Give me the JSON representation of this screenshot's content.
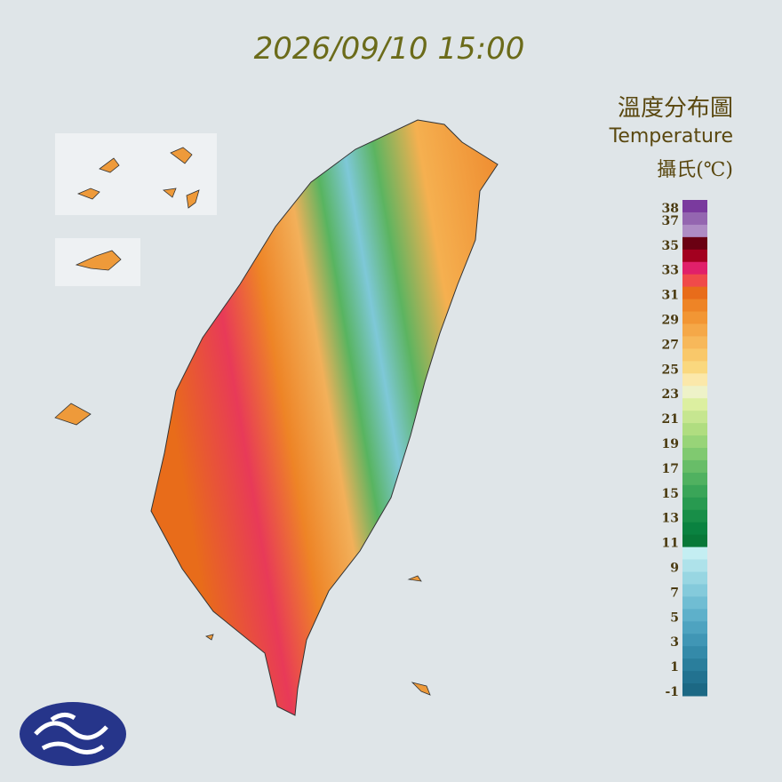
{
  "header": {
    "timestamp": "2026/09/10 15:00",
    "title": "溫度分布圖",
    "subtitle": "Temperature",
    "unit": "攝氏(℃)"
  },
  "legend": {
    "ticks": [
      38,
      37,
      35,
      33,
      31,
      29,
      27,
      25,
      23,
      21,
      19,
      17,
      15,
      13,
      11,
      9,
      7,
      5,
      3,
      1,
      -1
    ],
    "colors": [
      "#7a3a9e",
      "#9466b0",
      "#ae8cc4",
      "#6a0012",
      "#a3001f",
      "#e0206a",
      "#f04a4a",
      "#e86c1a",
      "#ee8426",
      "#f29634",
      "#f5a848",
      "#f7b85a",
      "#f9c86a",
      "#fad87e",
      "#fbe8aa",
      "#eef2c8",
      "#dcefa0",
      "#c6e690",
      "#b0dd80",
      "#98d478",
      "#80c970",
      "#68bd68",
      "#50b160",
      "#3aa558",
      "#289a50",
      "#188e48",
      "#0a8240",
      "#087838",
      "#c4eef2",
      "#aee2ea",
      "#98d6e2",
      "#84cadb",
      "#70bdd3",
      "#5eb0ca",
      "#4ea3c0",
      "#4096b5",
      "#348aa9",
      "#2a7e9c",
      "#227290",
      "#1c6884"
    ]
  }
}
